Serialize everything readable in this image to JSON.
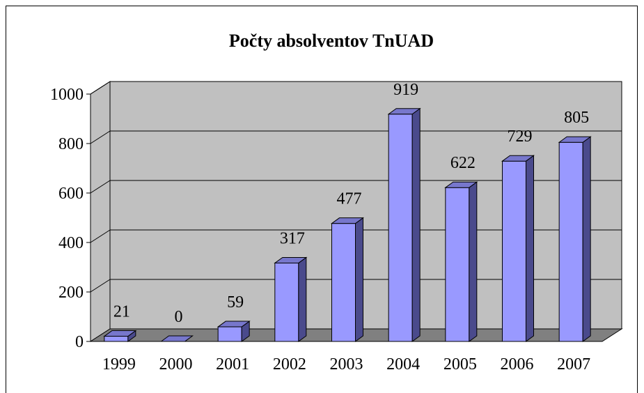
{
  "chart_data": {
    "type": "bar",
    "title": "Počty absolventov TnUAD",
    "categories": [
      "1999",
      "2000",
      "2001",
      "2002",
      "2003",
      "2004",
      "2005",
      "2006",
      "2007"
    ],
    "values": [
      21,
      0,
      59,
      317,
      477,
      919,
      622,
      729,
      805
    ],
    "data_labels": [
      "21",
      "0",
      "59",
      "317",
      "477",
      "919",
      "622",
      "729",
      "805"
    ],
    "y_ticks": [
      "0",
      "200",
      "400",
      "600",
      "800",
      "1000"
    ],
    "ylim": [
      0,
      1000
    ],
    "grid": true,
    "style": "3d-column",
    "colors": {
      "bar_front": "#9999ff",
      "bar_side": "#4a4a8c",
      "bar_top": "#7777cc",
      "wall": "#c0c0c0",
      "floor": "#808080"
    }
  }
}
